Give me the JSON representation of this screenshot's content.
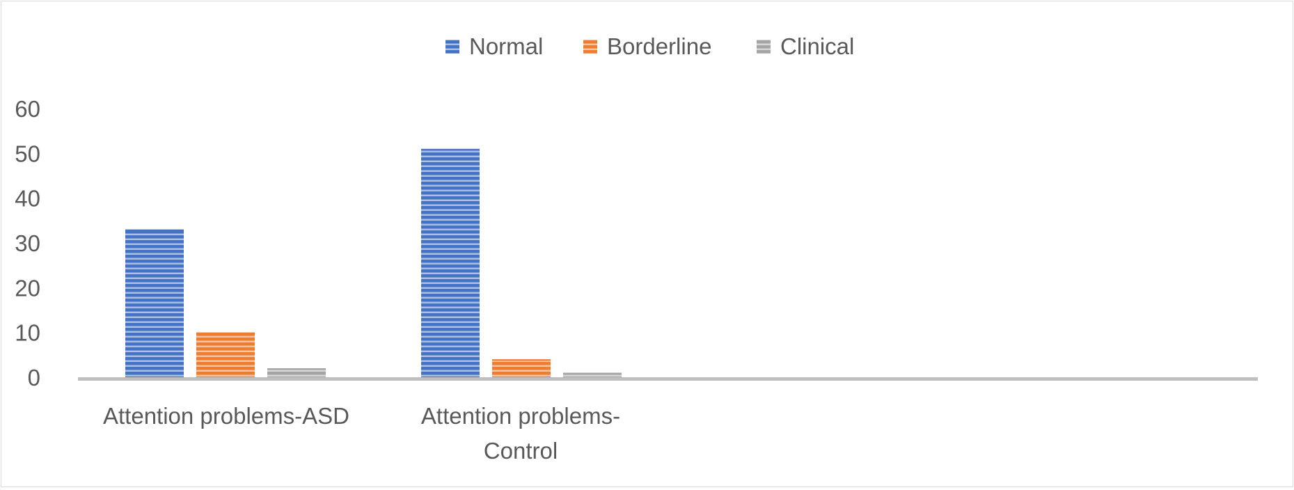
{
  "chart_data": {
    "type": "bar",
    "title": "",
    "xlabel": "",
    "ylabel": "",
    "categories": [
      [
        "Attention problems-ASD"
      ],
      [
        "Attention problems-",
        "Control"
      ]
    ],
    "series": [
      {
        "name": "Normal",
        "values": [
          33,
          51
        ],
        "color": "#4472c4"
      },
      {
        "name": "Borderline",
        "values": [
          10,
          4
        ],
        "color": "#ed7d31"
      },
      {
        "name": "Clinical",
        "values": [
          2,
          1
        ],
        "color": "#a5a5a5"
      }
    ],
    "ylim": [
      0,
      60
    ],
    "yticks": [
      0,
      10,
      20,
      30,
      40,
      50,
      60
    ],
    "grid": false,
    "legend_position": "top",
    "bar_pattern": "horizontal-stripes"
  }
}
